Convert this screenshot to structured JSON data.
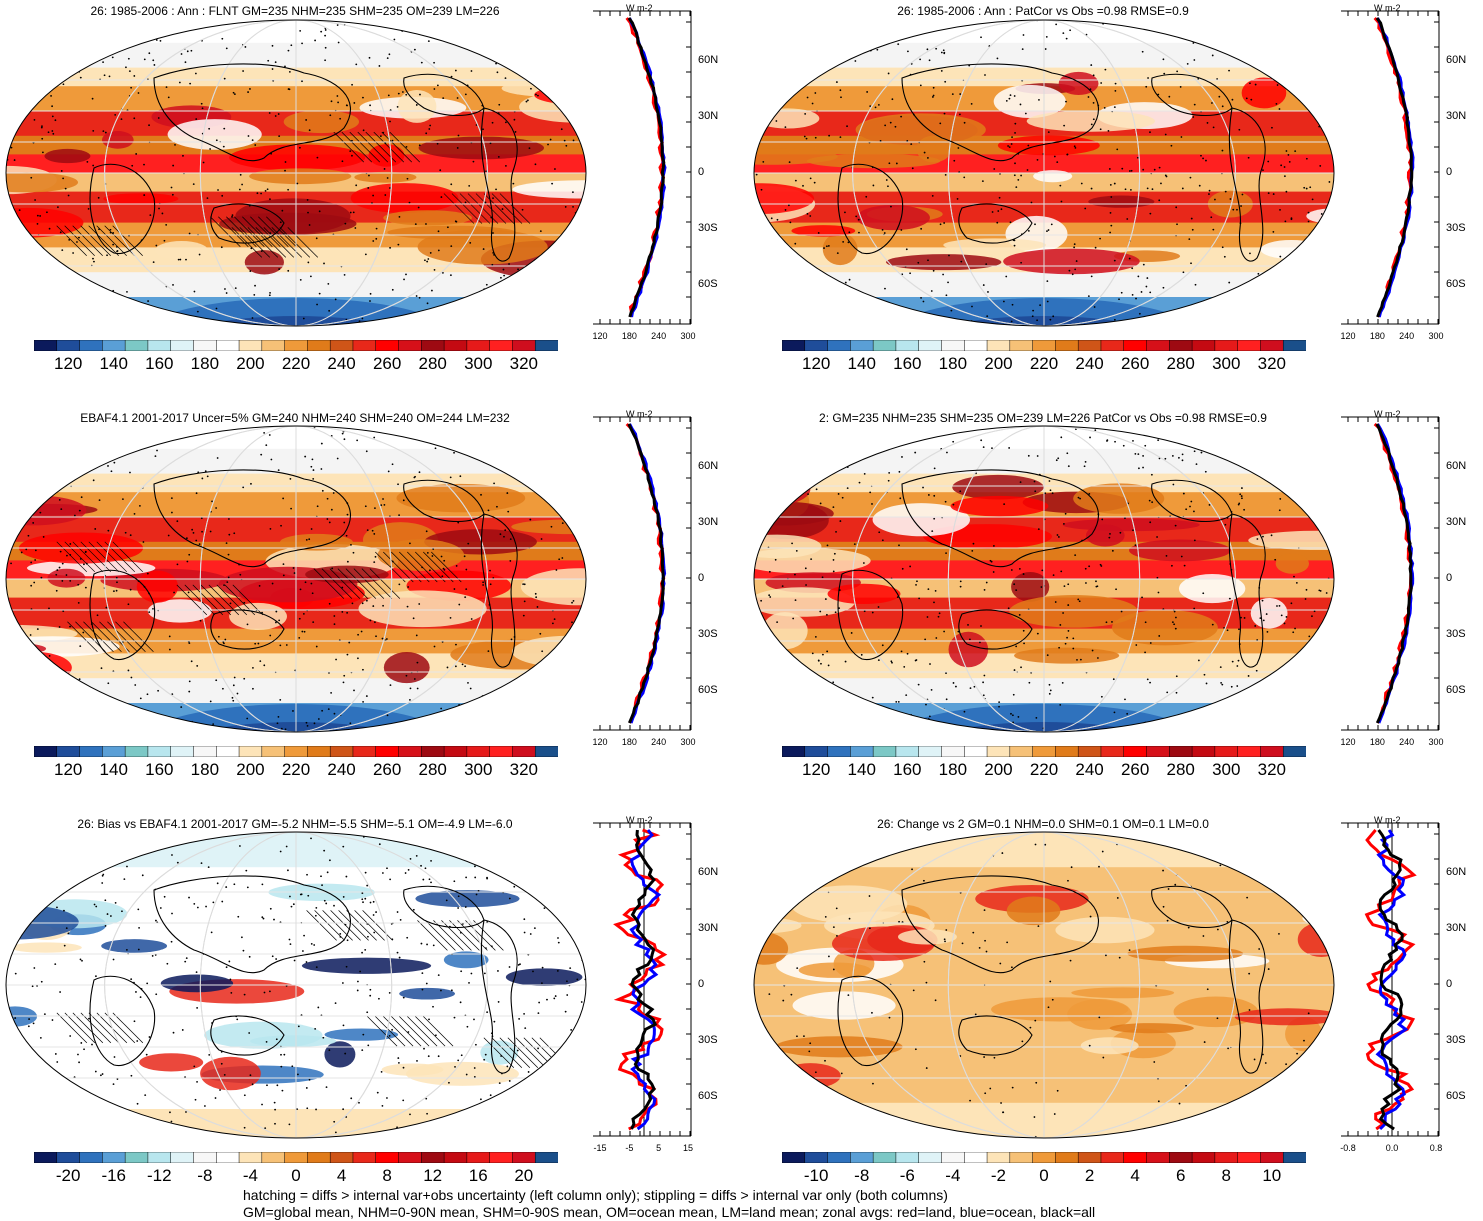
{
  "panels": [
    {
      "id": "p1",
      "title": "26: 1985-2006 : Ann : FLNT GM=235 NHM=235 SHM=235 OM=239 LM=226",
      "palette": "full",
      "cbar_labels": [
        "120",
        "140",
        "160",
        "180",
        "200",
        "220",
        "240",
        "260",
        "280",
        "300",
        "320"
      ],
      "zonal_xticks": [
        "120",
        "180",
        "240",
        "300"
      ],
      "zonal_unit": "W m-2",
      "lat_labels": [
        "60N",
        "30N",
        "0",
        "30S",
        "60S"
      ],
      "has_hatch": true,
      "has_stipple": true
    },
    {
      "id": "p2",
      "title": "26: 1985-2006 : Ann : PatCor vs Obs =0.98 RMSE=0.9",
      "palette": "full",
      "cbar_labels": [
        "120",
        "140",
        "160",
        "180",
        "200",
        "220",
        "240",
        "260",
        "280",
        "300",
        "320"
      ],
      "zonal_xticks": [
        "120",
        "180",
        "240",
        "300"
      ],
      "zonal_unit": "W m-2",
      "lat_labels": [
        "60N",
        "30N",
        "0",
        "30S",
        "60S"
      ],
      "has_hatch": false,
      "has_stipple": true
    },
    {
      "id": "p3",
      "title": "EBAF4.1 2001-2017 Uncer=5% GM=240 NHM=240 SHM=240 OM=244 LM=232",
      "palette": "full",
      "cbar_labels": [
        "120",
        "140",
        "160",
        "180",
        "200",
        "220",
        "240",
        "260",
        "280",
        "300",
        "320"
      ],
      "zonal_xticks": [
        "120",
        "180",
        "240",
        "300"
      ],
      "zonal_unit": "W m-2",
      "lat_labels": [
        "60N",
        "30N",
        "0",
        "30S",
        "60S"
      ],
      "has_hatch": true,
      "has_stipple": true
    },
    {
      "id": "p4",
      "title": "2: GM=235 NHM=235 SHM=235 OM=239 LM=226 PatCor vs Obs =0.98 RMSE=0.9",
      "palette": "full",
      "cbar_labels": [
        "120",
        "140",
        "160",
        "180",
        "200",
        "220",
        "240",
        "260",
        "280",
        "300",
        "320"
      ],
      "zonal_xticks": [
        "120",
        "180",
        "240",
        "300"
      ],
      "zonal_unit": "W m-2",
      "lat_labels": [
        "60N",
        "30N",
        "0",
        "30S",
        "60S"
      ],
      "has_hatch": false,
      "has_stipple": true
    },
    {
      "id": "p5",
      "title": "26: Bias vs EBAF4.1 2001-2017 GM=-5.2 NHM=-5.5 SHM=-5.1 OM=-4.9 LM=-6.0",
      "palette": "diff",
      "cbar_labels": [
        "-20",
        "-16",
        "-12",
        "-8",
        "-4",
        "0",
        "4",
        "8",
        "12",
        "16",
        "20"
      ],
      "zonal_xticks": [
        "-15",
        "-5",
        "5",
        "15"
      ],
      "zonal_unit": "W m-2",
      "lat_labels": [
        "60N",
        "30N",
        "0",
        "30S",
        "60S"
      ],
      "has_hatch": true,
      "has_stipple": true
    },
    {
      "id": "p6",
      "title": "26: Change vs 2 GM=0.1 NHM=0.0 SHM=0.1 OM=0.1 LM=0.0",
      "palette": "diff",
      "cbar_labels": [
        "-10",
        "-8",
        "-6",
        "-4",
        "-2",
        "0",
        "2",
        "4",
        "6",
        "8",
        "10"
      ],
      "zonal_xticks": [
        "-0.8",
        "0.0",
        "0.8"
      ],
      "zonal_unit": "W m-2",
      "lat_labels": [
        "60N",
        "30N",
        "0",
        "30S",
        "60S"
      ],
      "has_hatch": false,
      "has_stipple": true
    }
  ],
  "palettes": {
    "full": [
      "#0b1a5c",
      "#1f4d9a",
      "#2f72bd",
      "#5a9fd6",
      "#7cc8c6",
      "#b8e6ee",
      "#dff3f7",
      "#f7f7f7",
      "#ffffff",
      "#fde4b8",
      "#f6c177",
      "#ef9a3a",
      "#e07b1a",
      "#cf5518",
      "#e8281a",
      "#ff0000",
      "#d61019",
      "#9e0a12",
      "#c40a12",
      "#e61a1a",
      "#ff2020",
      "#cf0e1e",
      "#1a4f8a"
    ],
    "diff": [
      "#0b1a5c",
      "#1f4d9a",
      "#2f72bd",
      "#5a9fd6",
      "#7cc8c6",
      "#b8e6ee",
      "#dff3f7",
      "#f7f7f7",
      "#ffffff",
      "#fde4b8",
      "#f6c177",
      "#ef9a3a",
      "#e07b1a",
      "#cf5518",
      "#e8281a",
      "#ff0000",
      "#d61019",
      "#9e0a12",
      "#c40a12",
      "#e61a1a",
      "#ff2020",
      "#cf0e1e",
      "#1a4f8a"
    ]
  },
  "zonal_colors": {
    "land": "#ff0000",
    "ocean": "#0000ff",
    "all": "#000000"
  },
  "footer": {
    "line1": "hatching = diffs > internal var+obs uncertainty (left column only); stippling = diffs > internal var only (both columns)",
    "line2": "GM=global mean, NHM=0-90N mean, SHM=0-90S mean, OM=ocean mean, LM=land mean; zonal avgs: red=land, blue=ocean, black=all"
  }
}
